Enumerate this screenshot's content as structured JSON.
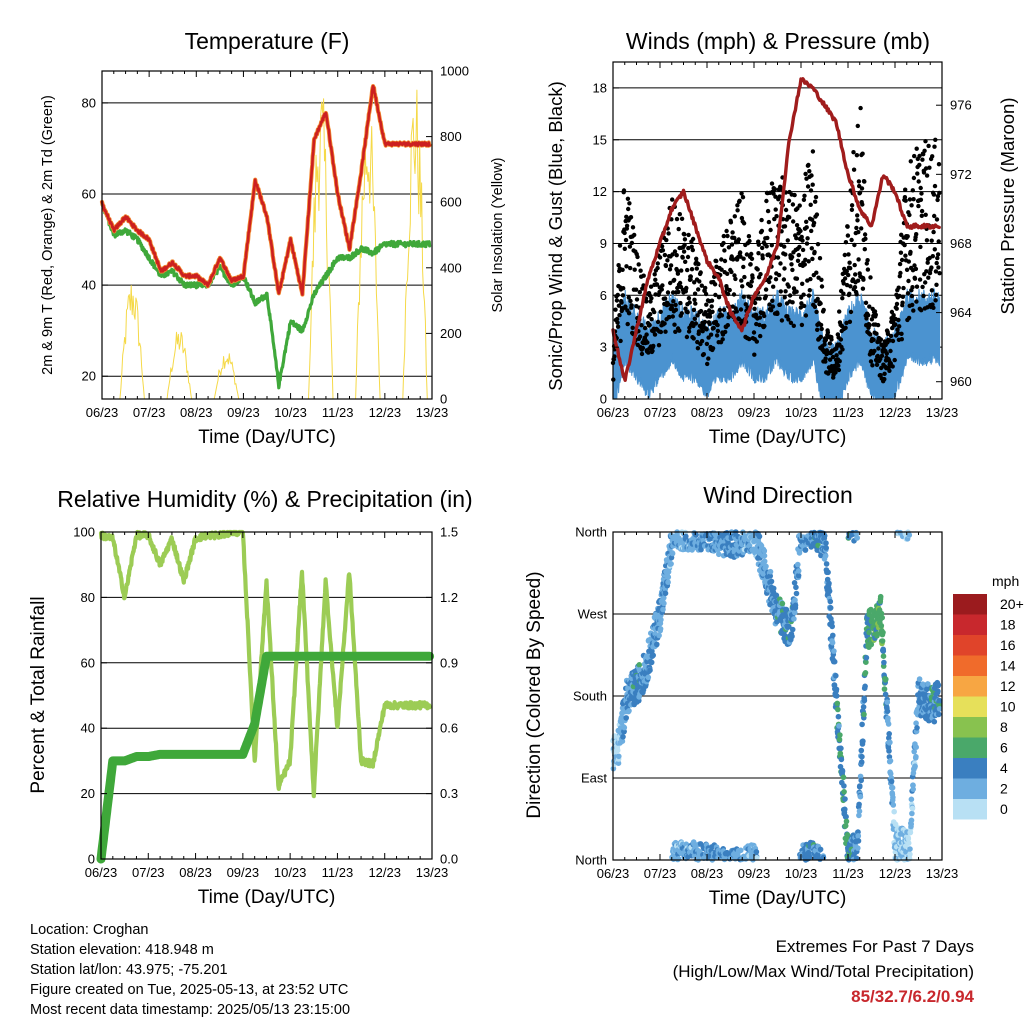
{
  "x_ticks": [
    "06/23",
    "07/23",
    "08/23",
    "09/23",
    "10/23",
    "11/23",
    "12/23",
    "13/23"
  ],
  "x_label": "Time (Day/UTC)",
  "colors": {
    "temp2m": "#cc2020",
    "temp9m": "#f28a30",
    "dew": "#3fa83a",
    "solar": "#f5d948",
    "wind": "#4b93d0",
    "gust": "#000000",
    "pressure": "#a01c1c",
    "rh": "#9ccc55",
    "precip": "#3fa83a"
  },
  "panels": {
    "temperature": {
      "title": "Temperature (F)",
      "ylabel_left": "2m & 9m T (Red, Orange) & 2m Td (Green)",
      "ylabel_right": "Solar Insolation (Yellow)",
      "yticks_left": [
        "20",
        "40",
        "60",
        "80"
      ],
      "yticks_right": [
        "0",
        "200",
        "400",
        "600",
        "800",
        "1000"
      ]
    },
    "winds": {
      "title": "Winds (mph) & Pressure (mb)",
      "ylabel_left": "Sonic/Prop Wind & Gust (Blue, Black)",
      "ylabel_right": "Station Pressure (Maroon)",
      "yticks_left": [
        "0",
        "3",
        "6",
        "9",
        "12",
        "15",
        "18"
      ],
      "yticks_right": [
        "960",
        "964",
        "968",
        "972",
        "976"
      ]
    },
    "humidity": {
      "title": "Relative Humidity (%) & Precipitation (in)",
      "ylabel_left": "Percent & Total Rainfall",
      "yticks_left": [
        "0",
        "20",
        "40",
        "60",
        "80",
        "100"
      ],
      "yticks_right": [
        "0.0",
        "0.3",
        "0.6",
        "0.9",
        "1.2",
        "1.5"
      ]
    },
    "direction": {
      "title": "Wind Direction",
      "ylabel_left": "Direction (Colored By Speed)",
      "yticks_left": [
        "North",
        "East",
        "South",
        "West",
        "North"
      ],
      "legend_title": "mph",
      "legend_labels": [
        "20+",
        "18",
        "16",
        "14",
        "12",
        "10",
        "8",
        "6",
        "4",
        "2",
        "0"
      ],
      "legend_colors": [
        "#9b1b1e",
        "#c8282d",
        "#e0442a",
        "#f06b2b",
        "#f7a643",
        "#e6e05a",
        "#88c24f",
        "#4aa86a",
        "#3a7fc0",
        "#6eaee0",
        "#b8e0f4"
      ]
    }
  },
  "info": {
    "location": "Location: Croghan",
    "elevation": "Station elevation: 418.948 m",
    "latlon": "Station lat/lon: 43.975; -75.201",
    "created": "Figure created on Tue, 2025-05-13, at 23:52 UTC",
    "recent": "Most recent data timestamp: 2025/05/13 23:15:00"
  },
  "extremes": {
    "line1": "Extremes For Past 7 Days",
    "line2": "(High/Low/Max Wind/Total Precipitation)",
    "value": "85/32.7/6.2/0.94"
  },
  "chart_data": [
    {
      "type": "line",
      "title": "Temperature (F)",
      "xlabel": "Time (Day/UTC)",
      "ylabel": "2m & 9m T (Red, Orange) & 2m Td (Green)",
      "y2label": "Solar Insolation (Yellow)",
      "x": [
        0,
        0.25,
        0.5,
        0.75,
        1,
        1.25,
        1.5,
        1.75,
        2,
        2.25,
        2.5,
        2.75,
        3,
        3.25,
        3.5,
        3.75,
        4,
        4.25,
        4.5,
        4.75,
        5,
        5.25,
        5.5,
        5.75,
        6,
        6.25,
        6.5,
        6.75,
        7
      ],
      "ylim": [
        15,
        87
      ],
      "y2lim": [
        0,
        1000
      ],
      "series": [
        {
          "name": "2m T",
          "values": [
            58,
            52,
            55,
            52,
            50,
            43,
            45,
            42,
            42,
            40,
            46,
            41,
            42,
            63,
            55,
            38,
            50,
            38,
            72,
            78,
            60,
            48,
            65,
            84,
            71,
            71,
            71,
            71,
            71
          ]
        },
        {
          "name": "2m Td",
          "values": [
            58,
            51,
            52,
            50,
            46,
            42,
            43,
            40,
            40,
            40,
            44,
            40,
            42,
            36,
            38,
            18,
            32,
            30,
            38,
            42,
            46,
            46,
            48,
            47,
            49,
            49,
            49,
            49,
            49
          ]
        },
        {
          "name": "Solar Insolation",
          "axis": "right",
          "values": [
            0,
            380,
            0,
            0,
            220,
            0,
            0,
            160,
            0,
            0,
            0,
            0,
            0,
            980,
            0,
            0,
            950,
            0,
            0,
            1000,
            0,
            0,
            0,
            1000,
            0,
            0,
            0,
            0,
            0
          ]
        }
      ]
    },
    {
      "type": "line",
      "title": "Winds (mph) & Pressure (mb)",
      "xlabel": "Time (Day/UTC)",
      "ylabel": "Sonic/Prop Wind & Gust (Blue, Black)",
      "y2label": "Station Pressure (Maroon)",
      "x": [
        0,
        0.25,
        0.5,
        0.75,
        1,
        1.25,
        1.5,
        1.75,
        2,
        2.25,
        2.5,
        2.75,
        3,
        3.25,
        3.5,
        3.75,
        4,
        4.25,
        4.5,
        4.75,
        5,
        5.25,
        5.5,
        5.75,
        6,
        6.25,
        6.5,
        6.75,
        7
      ],
      "ylim": [
        0,
        19.5
      ],
      "y2lim": [
        959,
        978.5
      ],
      "series": [
        {
          "name": "Wind",
          "values": [
            1,
            4,
            3,
            2,
            3,
            4,
            3,
            3,
            2,
            3,
            3,
            4,
            3,
            3,
            4,
            3,
            3,
            4,
            1,
            1,
            3,
            4,
            2,
            1,
            2,
            4,
            4,
            4,
            4
          ]
        },
        {
          "name": "Gust",
          "values": [
            2,
            9,
            6,
            4,
            6,
            8,
            7,
            6,
            4,
            6,
            7,
            8,
            5,
            8,
            9,
            8,
            8,
            10,
            3,
            2,
            8,
            12,
            4,
            2,
            4,
            9,
            10,
            10,
            10
          ]
        },
        {
          "name": "Station Pressure",
          "axis": "right",
          "values": [
            963,
            960,
            963,
            966,
            968,
            970,
            971,
            969,
            967,
            966,
            964,
            963,
            965,
            966,
            968,
            974,
            977.5,
            977,
            976,
            975,
            972,
            970,
            969,
            972,
            971,
            969,
            969,
            969,
            969
          ]
        }
      ]
    },
    {
      "type": "line",
      "title": "Relative Humidity (%) & Precipitation (in)",
      "xlabel": "Time (Day/UTC)",
      "ylabel": "Percent & Total Rainfall",
      "x": [
        0,
        0.25,
        0.5,
        0.75,
        1,
        1.25,
        1.5,
        1.75,
        2,
        2.25,
        2.5,
        2.75,
        3,
        3.25,
        3.5,
        3.75,
        4,
        4.25,
        4.5,
        4.75,
        5,
        5.25,
        5.5,
        5.75,
        6,
        6.25,
        6.5,
        6.75,
        7
      ],
      "ylim": [
        0,
        100
      ],
      "y2lim": [
        0,
        1.5
      ],
      "series": [
        {
          "name": "Relative Humidity",
          "values": [
            99,
            98,
            80,
            99,
            99,
            90,
            98,
            85,
            98,
            99,
            99,
            100,
            100,
            30,
            85,
            22,
            30,
            88,
            20,
            85,
            40,
            88,
            30,
            29,
            47,
            47,
            47,
            47,
            47
          ]
        },
        {
          "name": "Total Precipitation",
          "axis": "right",
          "values": [
            0,
            0.45,
            0.45,
            0.47,
            0.47,
            0.48,
            0.48,
            0.48,
            0.48,
            0.48,
            0.48,
            0.48,
            0.48,
            0.62,
            0.93,
            0.93,
            0.93,
            0.93,
            0.93,
            0.93,
            0.93,
            0.93,
            0.93,
            0.93,
            0.93,
            0.93,
            0.93,
            0.93,
            0.93
          ]
        }
      ]
    },
    {
      "type": "scatter",
      "title": "Wind Direction",
      "xlabel": "Time (Day/UTC)",
      "ylabel": "Direction (Colored By Speed)",
      "ylim": [
        0,
        360
      ],
      "x": [
        0.1,
        0.3,
        0.5,
        0.7,
        1.0,
        1.3,
        1.5,
        2.0,
        2.5,
        3.0,
        3.5,
        3.8,
        4.0,
        4.3,
        4.5,
        5.0,
        5.2,
        5.4,
        5.7,
        6.0,
        6.3,
        6.5,
        6.8,
        7.0
      ],
      "values": [
        120,
        180,
        190,
        210,
        270,
        360,
        360,
        360,
        350,
        360,
        270,
        250,
        360,
        360,
        350,
        5,
        10,
        250,
        270,
        20,
        10,
        180,
        170,
        180
      ],
      "speeds": [
        1,
        3,
        4,
        3,
        3,
        2,
        2,
        3,
        3,
        2,
        4,
        4,
        3,
        4,
        3,
        5,
        3,
        5,
        6,
        1,
        1,
        3,
        4,
        4
      ]
    }
  ]
}
